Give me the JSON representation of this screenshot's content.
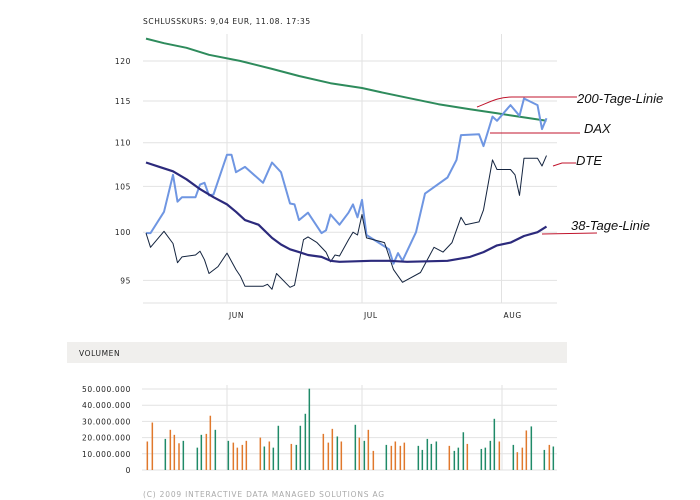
{
  "header": {
    "title": "SCHLUSSKURS: 9,04 EUR, 11.08. 17:35"
  },
  "colors": {
    "sma200": "#2e8b5c",
    "dax": "#6f96e2",
    "dte": "#14243f",
    "sma38": "#2c2a7c",
    "leader": "#c0142c",
    "vol_up": "#1f8a68",
    "vol_down": "#e0782c",
    "volume_header_bg": "#f0efed"
  },
  "chart_data": [
    {
      "type": "line",
      "title": "SCHLUSSKURS: 9,04 EUR, 11.08. 17:35",
      "y_scale": "log",
      "ylim": [
        93,
        124
      ],
      "y_ticks": [
        95,
        100,
        105,
        110,
        115,
        120
      ],
      "x_ticks": [
        {
          "label": "JUN",
          "date": "2009-06-01"
        },
        {
          "label": "JUL",
          "date": "2009-07-01"
        },
        {
          "label": "AUG",
          "date": "2009-08-01"
        }
      ],
      "xlim": [
        "2009-05-14",
        "2009-08-11"
      ],
      "grid": true,
      "series": [
        {
          "name": "200-Tage-Linie",
          "color": "#2e8b5c",
          "points": [
            [
              "2009-05-14",
              122.9
            ],
            [
              "2009-05-18",
              122.3
            ],
            [
              "2009-05-23",
              121.7
            ],
            [
              "2009-05-28",
              120.8
            ],
            [
              "2009-06-04",
              120.0
            ],
            [
              "2009-06-11",
              119.0
            ],
            [
              "2009-06-17",
              118.1
            ],
            [
              "2009-06-24",
              117.2
            ],
            [
              "2009-07-01",
              116.6
            ],
            [
              "2009-07-05",
              116.1
            ],
            [
              "2009-07-11",
              115.4
            ],
            [
              "2009-07-18",
              114.6
            ],
            [
              "2009-07-25",
              114.0
            ],
            [
              "2009-07-31",
              113.5
            ],
            [
              "2009-08-06",
              113.0
            ],
            [
              "2009-08-11",
              112.6
            ]
          ]
        },
        {
          "name": "DAX",
          "color": "#6f96e2",
          "points": [
            [
              "2009-05-14",
              99.9
            ],
            [
              "2009-05-15",
              99.9
            ],
            [
              "2009-05-18",
              102.2
            ],
            [
              "2009-05-20",
              106.3
            ],
            [
              "2009-05-21",
              103.3
            ],
            [
              "2009-05-22",
              103.8
            ],
            [
              "2009-05-25",
              103.8
            ],
            [
              "2009-05-26",
              105.2
            ],
            [
              "2009-05-27",
              105.4
            ],
            [
              "2009-05-28",
              104.0
            ],
            [
              "2009-05-29",
              104.1
            ],
            [
              "2009-06-01",
              108.6
            ],
            [
              "2009-06-02",
              108.6
            ],
            [
              "2009-06-03",
              106.6
            ],
            [
              "2009-06-05",
              107.2
            ],
            [
              "2009-06-09",
              105.4
            ],
            [
              "2009-06-11",
              107.7
            ],
            [
              "2009-06-13",
              106.6
            ],
            [
              "2009-06-15",
              103.1
            ],
            [
              "2009-06-16",
              103.0
            ],
            [
              "2009-06-17",
              101.3
            ],
            [
              "2009-06-19",
              102.1
            ],
            [
              "2009-06-22",
              99.9
            ],
            [
              "2009-06-23",
              100.2
            ],
            [
              "2009-06-24",
              101.9
            ],
            [
              "2009-06-26",
              100.8
            ],
            [
              "2009-06-28",
              102.1
            ],
            [
              "2009-06-29",
              103.0
            ],
            [
              "2009-06-30",
              101.6
            ],
            [
              "2009-07-01",
              103.5
            ],
            [
              "2009-07-02",
              99.7
            ],
            [
              "2009-07-07",
              98.2
            ],
            [
              "2009-07-08",
              96.7
            ],
            [
              "2009-07-09",
              97.8
            ],
            [
              "2009-07-10",
              97.0
            ],
            [
              "2009-07-13",
              100.0
            ],
            [
              "2009-07-15",
              104.2
            ],
            [
              "2009-07-20",
              106.0
            ],
            [
              "2009-07-22",
              108.0
            ],
            [
              "2009-07-23",
              110.9
            ],
            [
              "2009-07-27",
              111.0
            ],
            [
              "2009-07-28",
              109.6
            ],
            [
              "2009-07-30",
              113.1
            ],
            [
              "2009-07-31",
              112.6
            ],
            [
              "2009-08-03",
              114.5
            ],
            [
              "2009-08-05",
              113.2
            ],
            [
              "2009-08-06",
              115.3
            ],
            [
              "2009-08-09",
              114.5
            ],
            [
              "2009-08-10",
              111.6
            ],
            [
              "2009-08-11",
              112.9
            ]
          ]
        },
        {
          "name": "DTE",
          "color": "#14243f",
          "points": [
            [
              "2009-05-14",
              99.9
            ],
            [
              "2009-05-15",
              98.4
            ],
            [
              "2009-05-18",
              100.1
            ],
            [
              "2009-05-20",
              98.8
            ],
            [
              "2009-05-21",
              96.8
            ],
            [
              "2009-05-22",
              97.4
            ],
            [
              "2009-05-25",
              97.6
            ],
            [
              "2009-05-26",
              98.0
            ],
            [
              "2009-05-27",
              97.1
            ],
            [
              "2009-05-28",
              95.7
            ],
            [
              "2009-05-30",
              96.4
            ],
            [
              "2009-06-01",
              97.8
            ],
            [
              "2009-06-03",
              96.1
            ],
            [
              "2009-06-04",
              95.4
            ],
            [
              "2009-06-05",
              94.4
            ],
            [
              "2009-06-09",
              94.4
            ],
            [
              "2009-06-10",
              94.6
            ],
            [
              "2009-06-11",
              94.1
            ],
            [
              "2009-06-12",
              95.7
            ],
            [
              "2009-06-15",
              94.3
            ],
            [
              "2009-06-16",
              94.5
            ],
            [
              "2009-06-18",
              99.2
            ],
            [
              "2009-06-19",
              99.5
            ],
            [
              "2009-06-21",
              98.9
            ],
            [
              "2009-06-23",
              97.9
            ],
            [
              "2009-06-24",
              96.9
            ],
            [
              "2009-06-25",
              97.6
            ],
            [
              "2009-06-26",
              97.5
            ],
            [
              "2009-06-28",
              99.2
            ],
            [
              "2009-06-29",
              100.0
            ],
            [
              "2009-06-30",
              99.7
            ],
            [
              "2009-07-01",
              101.9
            ],
            [
              "2009-07-02",
              99.4
            ],
            [
              "2009-07-06",
              98.9
            ],
            [
              "2009-07-08",
              96.1
            ],
            [
              "2009-07-10",
              94.8
            ],
            [
              "2009-07-14",
              95.8
            ],
            [
              "2009-07-17",
              98.4
            ],
            [
              "2009-07-19",
              97.9
            ],
            [
              "2009-07-21",
              98.9
            ],
            [
              "2009-07-23",
              101.6
            ],
            [
              "2009-07-24",
              100.8
            ],
            [
              "2009-07-27",
              101.1
            ],
            [
              "2009-07-28",
              102.4
            ],
            [
              "2009-07-30",
              108.0
            ],
            [
              "2009-07-31",
              106.9
            ],
            [
              "2009-08-03",
              106.9
            ],
            [
              "2009-08-04",
              106.3
            ],
            [
              "2009-08-05",
              104.0
            ],
            [
              "2009-08-06",
              108.2
            ],
            [
              "2009-08-09",
              108.2
            ],
            [
              "2009-08-10",
              107.3
            ],
            [
              "2009-08-11",
              108.5
            ]
          ]
        },
        {
          "name": "38-Tage-Linie",
          "color": "#2c2a7c",
          "points": [
            [
              "2009-05-14",
              107.7
            ],
            [
              "2009-05-17",
              107.2
            ],
            [
              "2009-05-20",
              106.7
            ],
            [
              "2009-05-23",
              105.8
            ],
            [
              "2009-05-26",
              104.7
            ],
            [
              "2009-05-29",
              103.8
            ],
            [
              "2009-06-01",
              103.0
            ],
            [
              "2009-06-03",
              102.2
            ],
            [
              "2009-06-05",
              101.3
            ],
            [
              "2009-06-08",
              100.8
            ],
            [
              "2009-06-11",
              99.4
            ],
            [
              "2009-06-13",
              98.7
            ],
            [
              "2009-06-15",
              98.2
            ],
            [
              "2009-06-17",
              97.9
            ],
            [
              "2009-06-19",
              97.6
            ],
            [
              "2009-06-22",
              97.4
            ],
            [
              "2009-06-24",
              97.0
            ],
            [
              "2009-06-26",
              96.9
            ],
            [
              "2009-07-03",
              97.0
            ],
            [
              "2009-07-07",
              97.0
            ],
            [
              "2009-07-11",
              96.9
            ],
            [
              "2009-07-20",
              97.0
            ],
            [
              "2009-07-25",
              97.4
            ],
            [
              "2009-07-28",
              97.9
            ],
            [
              "2009-07-31",
              98.6
            ],
            [
              "2009-08-03",
              98.9
            ],
            [
              "2009-08-06",
              99.6
            ],
            [
              "2009-08-09",
              100.0
            ],
            [
              "2009-08-11",
              100.6
            ]
          ]
        }
      ]
    },
    {
      "type": "bar",
      "title": "VOLUMEN",
      "ylim": [
        0,
        50000000
      ],
      "y_ticks": [
        "0",
        "10.000.000",
        "20.000.000",
        "30.000.000",
        "40.000.000",
        "50.000.000"
      ],
      "grid": true,
      "values": [
        17600000,
        29300000,
        19200000,
        24800000,
        21700000,
        16500000,
        18000000,
        13800000,
        21700000,
        22300000,
        33500000,
        24800000,
        18000000,
        16900000,
        13800000,
        15500000,
        18000000,
        20000000,
        14500000,
        17600000,
        13800000,
        27300000,
        16100000,
        15500000,
        27300000,
        34700000,
        50200000,
        22300000,
        16900000,
        25400000,
        20700000,
        17600000,
        27900000,
        20000000,
        18000000,
        24800000,
        11800000,
        15500000,
        14900000,
        17600000,
        14900000,
        16900000,
        14900000,
        12400000,
        19200000,
        16100000,
        17600000,
        14900000,
        11800000,
        13800000,
        23300000,
        16100000,
        13000000,
        13800000,
        18000000,
        31600000,
        17600000,
        15500000,
        11000000,
        13800000,
        24400000,
        26900000,
        12400000,
        15500000,
        14500000
      ],
      "bar_colors": [
        "orange",
        "orange",
        "green",
        "orange",
        "orange",
        "orange",
        "green",
        "green",
        "green",
        "orange",
        "orange",
        "green",
        "green",
        "orange",
        "orange",
        "orange",
        "orange",
        "orange",
        "green",
        "orange",
        "green",
        "green",
        "orange",
        "green",
        "green",
        "green",
        "green",
        "orange",
        "orange",
        "orange",
        "green",
        "orange",
        "green",
        "orange",
        "green",
        "orange",
        "orange",
        "green",
        "orange",
        "orange",
        "orange",
        "orange",
        "green",
        "green",
        "green",
        "green",
        "green",
        "orange",
        "green",
        "green",
        "green",
        "orange",
        "green",
        "green",
        "green",
        "green",
        "orange",
        "green",
        "orange",
        "orange",
        "orange",
        "green",
        "green",
        "orange",
        "green"
      ]
    }
  ],
  "footer": {
    "copyright": "(C) 2009 INTERACTIVE DATA MANAGED SOLUTIONS AG"
  }
}
